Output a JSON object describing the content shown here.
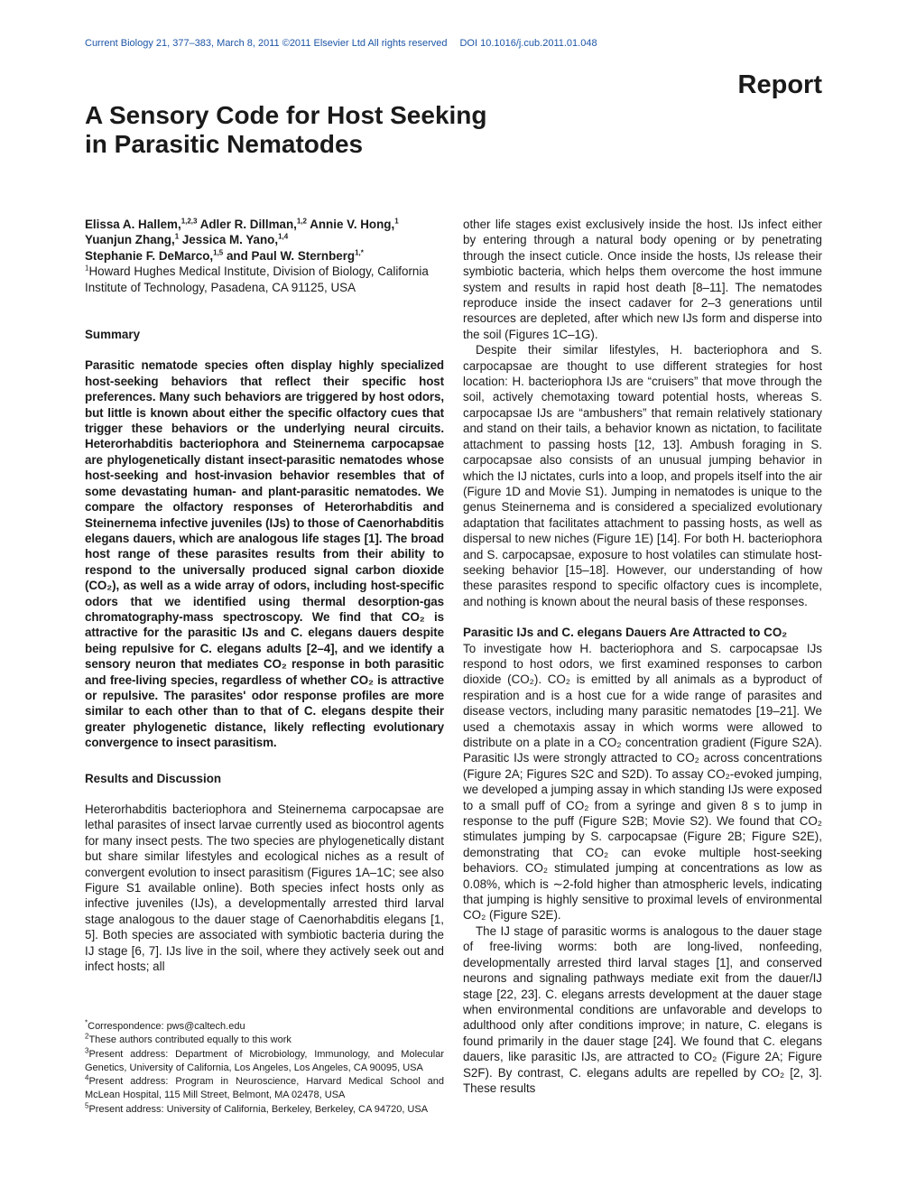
{
  "header": {
    "citation": "Current Biology 21, 377–383, March 8, 2011 ©2011 Elsevier Ltd All rights reserved",
    "doi": "DOI 10.1016/j.cub.2011.01.048"
  },
  "section_label": "Report",
  "title": [
    "A Sensory Code for Host Seeking",
    "in Parasitic Nematodes"
  ],
  "authors": [
    [
      {
        "name": "Elissa A. Hallem,",
        "sup": "1,2,3"
      },
      {
        "name": " Adler R. Dillman,",
        "sup": "1,2"
      },
      {
        "name": " Annie V. Hong,",
        "sup": "1"
      }
    ],
    [
      {
        "name": "Yuanjun Zhang,",
        "sup": "1"
      },
      {
        "name": " Jessica M. Yano,",
        "sup": "1,4"
      }
    ],
    [
      {
        "name": "Stephanie F. DeMarco,",
        "sup": "1,5"
      },
      {
        "name": " and Paul W. Sternberg",
        "sup": "1,*"
      }
    ]
  ],
  "affiliation": {
    "mark": "1",
    "text": "Howard Hughes Medical Institute, Division of Biology, California Institute of Technology, Pasadena, CA 91125, USA"
  },
  "summary": {
    "heading": "Summary",
    "text": "Parasitic nematode species often display highly specialized host-seeking behaviors that reflect their specific host preferences. Many such behaviors are triggered by host odors, but little is known about either the specific olfactory cues that trigger these behaviors or the underlying neural circuits. Heterorhabditis bacteriophora and Steinernema carpocapsae are phylogenetically distant insect-parasitic nematodes whose host-seeking and host-invasion behavior resembles that of some devastating human- and plant-parasitic nematodes. We compare the olfactory responses of Heterorhabditis and Steinernema infective juveniles (IJs) to those of Caenorhabditis elegans dauers, which are analogous life stages [1]. The broad host range of these parasites results from their ability to respond to the universally produced signal carbon dioxide (CO₂), as well as a wide array of odors, including host-specific odors that we identified using thermal desorption-gas chromatography-mass spectroscopy. We find that CO₂ is attractive for the parasitic IJs and C. elegans dauers despite being repulsive for C. elegans adults [2–4], and we identify a sensory neuron that mediates CO₂ response in both parasitic and free-living species, regardless of whether CO₂ is attractive or repulsive. The parasites' odor response profiles are more similar to each other than to that of C. elegans despite their greater phylogenetic distance, likely reflecting evolutionary convergence to insect parasitism."
  },
  "results": {
    "heading": "Results and Discussion",
    "paragraphs": [
      "Heterorhabditis bacteriophora and Steinernema carpocapsae are lethal parasites of insect larvae currently used as biocontrol agents for many insect pests. The two species are phylogenetically distant but share similar lifestyles and ecological niches as a result of convergent evolution to insect parasitism (Figures 1A–1C; see also Figure S1 available online). Both species infect hosts only as infective juveniles (IJs), a developmentally arrested third larval stage analogous to the dauer stage of Caenorhabditis elegans [1, 5]. Both species are associated with symbiotic bacteria during the IJ stage [6, 7]. IJs live in the soil, where they actively seek out and infect hosts; all",
      "other life stages exist exclusively inside the host. IJs infect either by entering through a natural body opening or by penetrating through the insect cuticle. Once inside the hosts, IJs release their symbiotic bacteria, which helps them overcome the host immune system and results in rapid host death [8–11]. The nematodes reproduce inside the insect cadaver for 2–3 generations until resources are depleted, after which new IJs form and disperse into the soil (Figures 1C–1G).",
      "Despite their similar lifestyles, H. bacteriophora and S. carpocapsae are thought to use different strategies for host location: H. bacteriophora IJs are “cruisers” that move through the soil, actively chemotaxing toward potential hosts, whereas S. carpocapsae IJs are “ambushers” that remain relatively stationary and stand on their tails, a behavior known as nictation, to facilitate attachment to passing hosts [12, 13]. Ambush foraging in S. carpocapsae also consists of an unusual jumping behavior in which the IJ nictates, curls into a loop, and propels itself into the air (Figure 1D and Movie S1). Jumping in nematodes is unique to the genus Steinernema and is considered a specialized evolutionary adaptation that facilitates attachment to passing hosts, as well as dispersal to new niches (Figure 1E) [14]. For both H. bacteriophora and S. carpocapsae, exposure to host volatiles can stimulate host-seeking behavior [15–18]. However, our understanding of how these parasites respond to specific olfactory cues is incomplete, and nothing is known about the neural basis of these responses."
    ]
  },
  "subsection": {
    "heading": "Parasitic IJs and C. elegans Dauers Are Attracted to CO₂",
    "paragraphs": [
      "To investigate how H. bacteriophora and S. carpocapsae IJs respond to host odors, we first examined responses to carbon dioxide (CO₂). CO₂ is emitted by all animals as a byproduct of respiration and is a host cue for a wide range of parasites and disease vectors, including many parasitic nematodes [19–21]. We used a chemotaxis assay in which worms were allowed to distribute on a plate in a CO₂ concentration gradient (Figure S2A). Parasitic IJs were strongly attracted to CO₂ across concentrations (Figure 2A; Figures S2C and S2D). To assay CO₂-evoked jumping, we developed a jumping assay in which standing IJs were exposed to a small puff of CO₂ from a syringe and given 8 s to jump in response to the puff (Figure S2B; Movie S2). We found that CO₂ stimulates jumping by S. carpocapsae (Figure 2B; Figure S2E), demonstrating that CO₂ can evoke multiple host-seeking behaviors. CO₂ stimulated jumping at concentrations as low as 0.08%, which is ∼2-fold higher than atmospheric levels, indicating that jumping is highly sensitive to proximal levels of environmental CO₂ (Figure S2E).",
      "The IJ stage of parasitic worms is analogous to the dauer stage of free-living worms: both are long-lived, nonfeeding, developmentally arrested third larval stages [1], and conserved neurons and signaling pathways mediate exit from the dauer/IJ stage [22, 23]. C. elegans arrests development at the dauer stage when environmental conditions are unfavorable and develops to adulthood only after conditions improve; in nature, C. elegans is found primarily in the dauer stage [24]. We found that C. elegans dauers, like parasitic IJs, are attracted to CO₂ (Figure 2A; Figure S2F). By contrast, C. elegans adults are repelled by CO₂ [2, 3]. These results"
    ]
  },
  "footnotes": [
    {
      "mark": "*",
      "text": "Correspondence: pws@caltech.edu"
    },
    {
      "mark": "2",
      "text": "These authors contributed equally to this work"
    },
    {
      "mark": "3",
      "text": "Present address: Department of Microbiology, Immunology, and Molecular Genetics, University of California, Los Angeles, Los Angeles, CA 90095, USA"
    },
    {
      "mark": "4",
      "text": "Present address: Program in Neuroscience, Harvard Medical School and McLean Hospital, 115 Mill Street, Belmont, MA 02478, USA"
    },
    {
      "mark": "5",
      "text": "Present address: University of California, Berkeley, Berkeley, CA 94720, USA"
    }
  ]
}
